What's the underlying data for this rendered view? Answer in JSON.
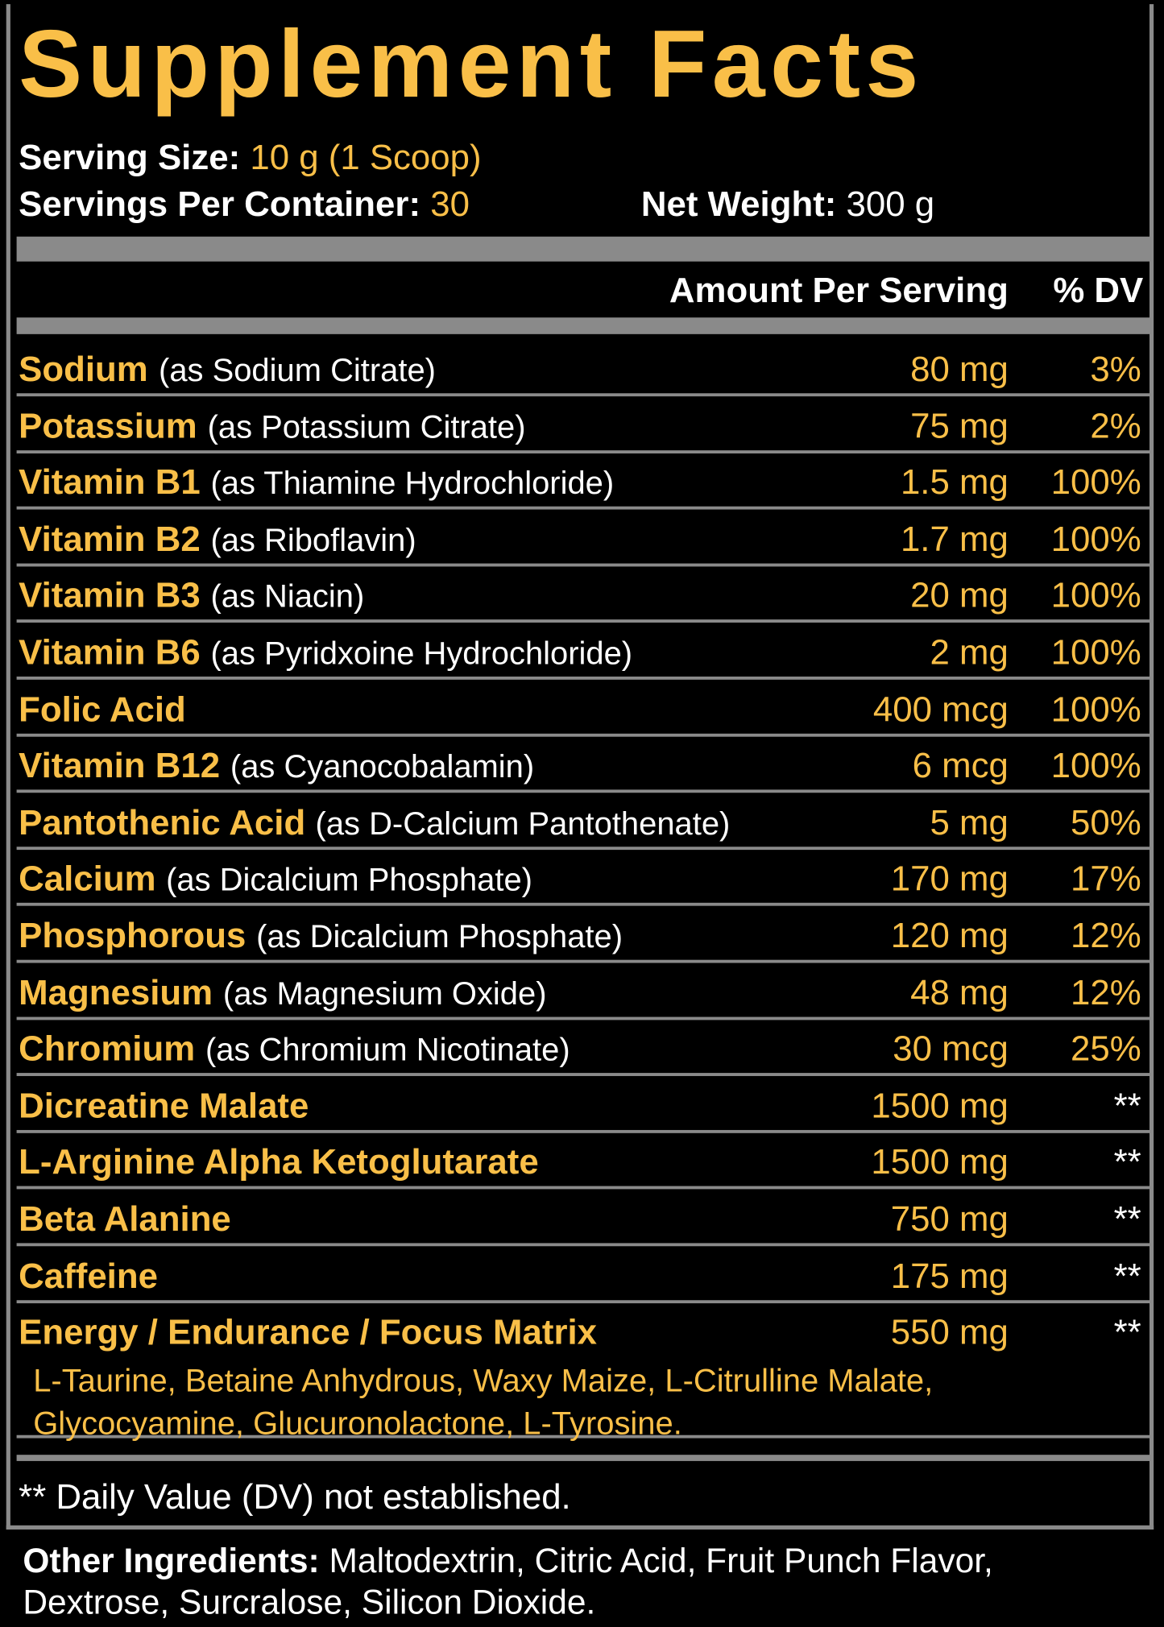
{
  "header": {
    "title": "Supplement Facts",
    "serving_size": {
      "label": "Serving Size:",
      "value": "10 g (1 Scoop)"
    },
    "servings_per_container": {
      "label": "Servings Per Container:",
      "value": "30"
    },
    "net_weight": {
      "label": "Net Weight:",
      "value": "300 g"
    }
  },
  "columns": {
    "amount": "Amount Per Serving",
    "dv": "% DV"
  },
  "rows": [
    {
      "name": "Sodium",
      "detail": "(as Sodium Citrate)",
      "amount": "80 mg",
      "dv": "3%"
    },
    {
      "name": "Potassium",
      "detail": "(as Potassium Citrate)",
      "amount": "75 mg",
      "dv": "2%"
    },
    {
      "name": "Vitamin B1",
      "detail": "(as Thiamine Hydrochloride)",
      "amount": "1.5 mg",
      "dv": "100%"
    },
    {
      "name": "Vitamin B2",
      "detail": "(as Riboflavin)",
      "amount": "1.7 mg",
      "dv": "100%"
    },
    {
      "name": "Vitamin B3",
      "detail": "(as Niacin)",
      "amount": "20 mg",
      "dv": "100%"
    },
    {
      "name": "Vitamin B6",
      "detail": "(as Pyridxoine Hydrochloride)",
      "amount": "2 mg",
      "dv": "100%"
    },
    {
      "name": "Folic Acid",
      "amount": "400 mcg",
      "dv": "100%"
    },
    {
      "name": "Vitamin B12",
      "detail": "(as Cyanocobalamin)",
      "amount": "6 mcg",
      "dv": "100%"
    },
    {
      "name": "Pantothenic Acid",
      "detail": "(as D-Calcium Pantothenate)",
      "amount": "5 mg",
      "dv": "50%"
    },
    {
      "name": "Calcium",
      "detail": "(as Dicalcium Phosphate)",
      "amount": "170 mg",
      "dv": "17%"
    },
    {
      "name": "Phosphorous",
      "detail": "(as Dicalcium Phosphate)",
      "amount": "120 mg",
      "dv": "12%"
    },
    {
      "name": "Magnesium",
      "detail": "(as Magnesium Oxide)",
      "amount": "48 mg",
      "dv": "12%"
    },
    {
      "name": "Chromium",
      "detail": "(as Chromium Nicotinate)",
      "amount": "30 mcg",
      "dv": "25%"
    },
    {
      "name": "Dicreatine Malate",
      "amount": "1500 mg",
      "dv": "**"
    },
    {
      "name": "L-Arginine Alpha Ketoglutarate",
      "amount": "1500 mg",
      "dv": "**"
    },
    {
      "name": "Beta Alanine",
      "amount": "750 mg",
      "dv": "**"
    },
    {
      "name": "Caffeine",
      "amount": "175 mg",
      "dv": "**"
    },
    {
      "name": "Energy / Endurance / Focus Matrix",
      "amount": "550 mg",
      "dv": "**"
    }
  ],
  "matrix_ingredients": [
    "L-Taurine,",
    "Betaine Anhydrous,",
    "Waxy Maize,",
    "L-Citrulline Malate,",
    "Glycocyamine,",
    "Glucuronolactone,",
    "L-Tyrosine."
  ],
  "footnote": "** Daily Value (DV) not established.",
  "other_ingredients": {
    "label": "Other Ingredients:",
    "text": "Maltodextrin, Citric Acid, Fruit Punch Flavor, Dextrose, Surcralose, Silicon Dioxide."
  }
}
